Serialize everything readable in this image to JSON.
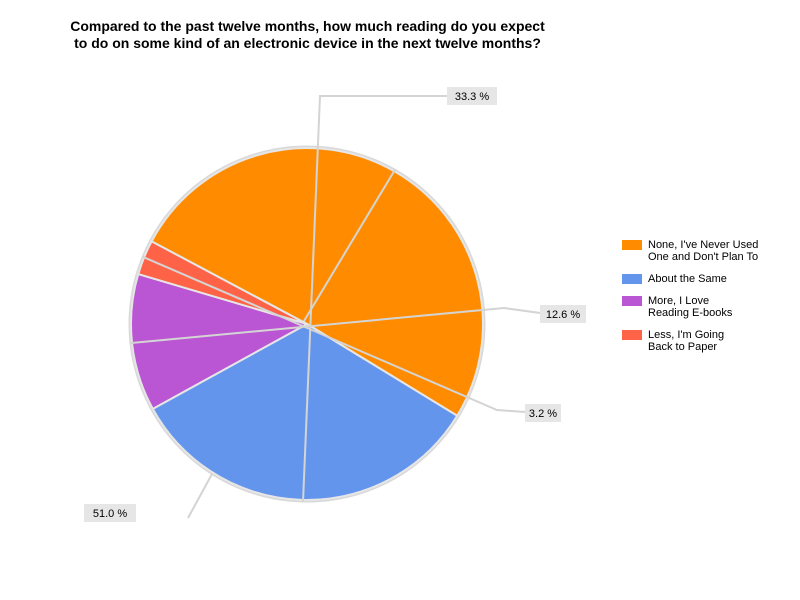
{
  "chart_data": {
    "type": "pie",
    "title": [
      "Compared to the past twelve months, how much reading do you expect",
      "to do on some kind of an electronic device in the next twelve months?"
    ],
    "slices": [
      {
        "label": [
          "None, I've Never Used",
          "One and Don't Plan To"
        ],
        "value": 51.0,
        "display": "51.0 %",
        "color": "#ff8c00"
      },
      {
        "label": [
          "About the Same"
        ],
        "value": 33.3,
        "display": "33.3 %",
        "color": "#6495ed"
      },
      {
        "label": [
          "More, I Love",
          "Reading E-books"
        ],
        "value": 12.6,
        "display": "12.6 %",
        "color": "#ba55d3"
      },
      {
        "label": [
          "Less, I'm Going",
          "Back to Paper"
        ],
        "value": 3.2,
        "display": "3.2 %",
        "color": "#ff6347"
      }
    ],
    "legend_position": "right"
  }
}
